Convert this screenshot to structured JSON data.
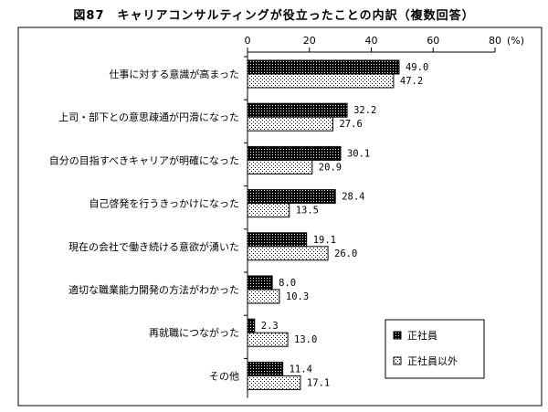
{
  "chart_data": {
    "type": "bar",
    "orientation": "horizontal",
    "title": "図87　キャリアコンサルティングが役立ったことの内訳（複数回答）",
    "unit": "(%)",
    "xlim": [
      0,
      80
    ],
    "xticks": [
      "0",
      "20",
      "40",
      "60",
      "80"
    ],
    "grid": false,
    "legend_position": "bottom-right",
    "categories": [
      "仕事に対する意識が高まった",
      "上司・部下との意思疎通が円滑になった",
      "自分の目指すべきキャリアが明確になった",
      "自己啓発を行うきっかけになった",
      "現在の会社で働き続ける意欲が湧いた",
      "適切な職業能力開発の方法がわかった",
      "再就職につながった",
      "その他"
    ],
    "series": [
      {
        "name": "正社員",
        "pattern": "dense-dots",
        "color": "#000000",
        "values": [
          49.0,
          32.2,
          30.1,
          28.4,
          19.1,
          8.0,
          2.3,
          11.4
        ],
        "labels": [
          "49.0",
          "32.2",
          "30.1",
          "28.4",
          "19.1",
          "8.0",
          "2.3",
          "11.4"
        ]
      },
      {
        "name": "正社員以外",
        "pattern": "sparse-dots",
        "color": "#ffffff",
        "values": [
          47.2,
          27.6,
          20.9,
          13.5,
          26.0,
          10.3,
          13.0,
          17.1
        ],
        "labels": [
          "47.2",
          "27.6",
          "20.9",
          "13.5",
          "26.0",
          "10.3",
          "13.0",
          "17.1"
        ]
      }
    ]
  }
}
